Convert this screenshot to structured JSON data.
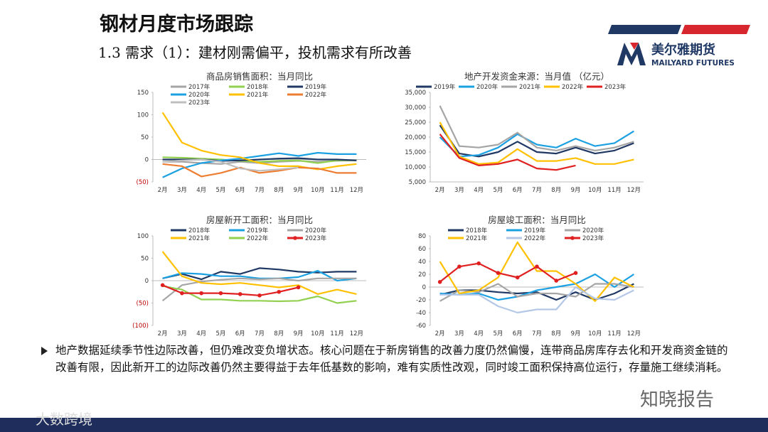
{
  "header": {
    "title": "钢材月度市场跟踪",
    "subtitle": "1.3 需求（1）：建材刚需偏平，投机需求有所改善",
    "logo_cn": "美尔雅期货",
    "logo_en": "MAILYARD FUTURES"
  },
  "chart_data": [
    {
      "type": "line",
      "title": "商品房销售面积：当月同比",
      "categories": [
        "2月",
        "3月",
        "4月",
        "5月",
        "6月",
        "7月",
        "8月",
        "9月",
        "10月",
        "11月",
        "12月"
      ],
      "ylim": [
        -50,
        150
      ],
      "yticks": [
        150,
        100,
        50,
        0,
        {
          "value": -50,
          "label": "(50)"
        }
      ],
      "series": [
        {
          "name": "2017年",
          "color": "#a5a5a5",
          "values": [
            -5,
            -5,
            -8,
            -10,
            -5,
            -8,
            -5,
            -3,
            -5,
            -3,
            -2
          ]
        },
        {
          "name": "2018年",
          "color": "#92d050",
          "values": [
            5,
            4,
            2,
            0,
            -3,
            -5,
            -3,
            -2,
            -8,
            -2,
            -2
          ]
        },
        {
          "name": "2019年",
          "color": "#1f3864",
          "values": [
            0,
            0,
            0,
            -3,
            -2,
            0,
            2,
            3,
            0,
            0,
            -2
          ]
        },
        {
          "name": "2020年",
          "color": "#1ba1e2",
          "values": [
            -40,
            -20,
            -8,
            -2,
            2,
            8,
            14,
            8,
            15,
            12,
            12
          ]
        },
        {
          "name": "2021年",
          "color": "#ffc000",
          "values": [
            105,
            38,
            20,
            10,
            5,
            -8,
            -15,
            -15,
            -22,
            -15,
            -10
          ]
        },
        {
          "name": "2022年",
          "color": "#ed7d31",
          "values": [
            -10,
            -15,
            -38,
            -30,
            -18,
            -30,
            -25,
            -18,
            -20,
            -30,
            -30
          ]
        },
        {
          "name": "2023年",
          "color": "#bfbfbf",
          "values": [
            -5,
            -2,
            0,
            -5,
            -20,
            -25,
            -22,
            -18,
            null,
            null,
            null
          ]
        }
      ]
    },
    {
      "type": "line",
      "title": "地产开发资金来源：当月值 （亿元）",
      "categories": [
        "2月",
        "3月",
        "4月",
        "5月",
        "6月",
        "7月",
        "8月",
        "9月",
        "10月",
        "11月",
        "12月"
      ],
      "ylim": [
        5000,
        35000
      ],
      "yticks": [
        {
          "value": 35000,
          "label": "35,000"
        },
        {
          "value": 30000,
          "label": "30,000"
        },
        {
          "value": 25000,
          "label": "25,000"
        },
        {
          "value": 20000,
          "label": "20,000"
        },
        {
          "value": 15000,
          "label": "15,000"
        },
        {
          "value": 10000,
          "label": "10,000"
        },
        {
          "value": 5000,
          "label": "5,000"
        }
      ],
      "series": [
        {
          "name": "2019年",
          "color": "#1f3864",
          "values": [
            24000,
            14500,
            13500,
            15000,
            18500,
            15000,
            14500,
            16500,
            14500,
            15500,
            18000
          ]
        },
        {
          "name": "2020年",
          "color": "#1ba1e2",
          "values": [
            20000,
            13500,
            14000,
            16500,
            21000,
            17500,
            16500,
            19500,
            17000,
            18000,
            22000
          ]
        },
        {
          "name": "2021年",
          "color": "#a5a5a5",
          "values": [
            30500,
            17000,
            16500,
            17500,
            21500,
            16500,
            15500,
            17000,
            15500,
            16500,
            18500
          ]
        },
        {
          "name": "2022年",
          "color": "#ffc000",
          "values": [
            25000,
            13500,
            11000,
            11500,
            16000,
            12000,
            12000,
            13000,
            11000,
            11000,
            12500
          ]
        },
        {
          "name": "2023年",
          "color": "#e02020",
          "values": [
            21000,
            13000,
            10500,
            11000,
            12500,
            9500,
            9000,
            10500,
            null,
            null,
            null
          ]
        }
      ]
    },
    {
      "type": "line",
      "title": "房屋新开工面积：当月同比",
      "categories": [
        "2月",
        "3月",
        "4月",
        "5月",
        "6月",
        "7月",
        "8月",
        "9月",
        "10月",
        "11月",
        "12月"
      ],
      "ylim": [
        -100,
        100
      ],
      "yticks": [
        100,
        50,
        0,
        {
          "value": -50,
          "label": "(50)"
        },
        {
          "value": -100,
          "label": "(100)"
        }
      ],
      "series": [
        {
          "name": "2018年",
          "color": "#1f3864",
          "values": [
            5,
            15,
            3,
            20,
            15,
            28,
            25,
            20,
            18,
            20,
            20
          ]
        },
        {
          "name": "2019年",
          "color": "#1ba1e2",
          "values": [
            5,
            17,
            15,
            10,
            10,
            5,
            5,
            8,
            22,
            0,
            5
          ]
        },
        {
          "name": "2020年",
          "color": "#a5a5a5",
          "values": [
            -45,
            -10,
            -2,
            2,
            5,
            3,
            5,
            0,
            5,
            5,
            5
          ]
        },
        {
          "name": "2021年",
          "color": "#ffc000",
          "values": [
            65,
            10,
            -5,
            -8,
            -5,
            -10,
            -15,
            -10,
            -30,
            -20,
            -30
          ]
        },
        {
          "name": "2022年",
          "color": "#92d050",
          "values": [
            -12,
            -20,
            -42,
            -42,
            -45,
            -45,
            -46,
            -45,
            -35,
            -50,
            -45
          ]
        },
        {
          "name": "2023年",
          "color": "#e02020",
          "markers": true,
          "values": [
            -10,
            -28,
            -28,
            -28,
            -30,
            -33,
            -25,
            -15,
            null,
            null,
            null
          ]
        }
      ]
    },
    {
      "type": "line",
      "title": "房屋竣工面积：当月同比",
      "categories": [
        "2月",
        "3月",
        "4月",
        "5月",
        "6月",
        "7月",
        "8月",
        "9月",
        "10月",
        "11月",
        "12月"
      ],
      "ylim": [
        -60,
        80
      ],
      "yticks": [
        80,
        60,
        40,
        20,
        0,
        -20,
        -40,
        -60
      ],
      "series": [
        {
          "name": "2018年",
          "color": "#1f3864",
          "values": [
            -12,
            -5,
            -5,
            -8,
            -10,
            -8,
            -20,
            -8,
            -20,
            -10,
            5
          ]
        },
        {
          "name": "2019年",
          "color": "#1ba1e2",
          "values": [
            -10,
            -12,
            -10,
            -20,
            -15,
            -5,
            0,
            5,
            20,
            0,
            20
          ]
        },
        {
          "name": "2020年",
          "color": "#a5a5a5",
          "values": [
            -22,
            -5,
            -8,
            5,
            -15,
            -10,
            -10,
            -15,
            5,
            5,
            0
          ]
        },
        {
          "name": "2021年",
          "color": "#ffc000",
          "values": [
            40,
            -10,
            -5,
            15,
            70,
            25,
            25,
            5,
            -22,
            15,
            0
          ]
        },
        {
          "name": "2022年",
          "color": "#b4c7e7",
          "values": [
            -12,
            -12,
            -12,
            -30,
            -40,
            -35,
            -35,
            0,
            -18,
            -20,
            -5
          ]
        },
        {
          "name": "2023年",
          "color": "#e02020",
          "markers": true,
          "values": [
            8,
            32,
            37,
            22,
            15,
            32,
            10,
            22,
            null,
            null,
            null
          ]
        }
      ]
    }
  ],
  "body": {
    "text": "地产数据延续季节性边际改善，但仍难改变负增状态。核心问题在于新房销售的改善力度仍然偏慢，连带商品房库存去化和开发商资金链的改善有限，因此新开工的边际改善仍然主要得益于去年低基数的影响，难有实质性改观，同时竣工面积保持高位运行，存量施工继续消耗。"
  },
  "watermarks": {
    "right": "知晓报告",
    "left": "大数跨境"
  }
}
